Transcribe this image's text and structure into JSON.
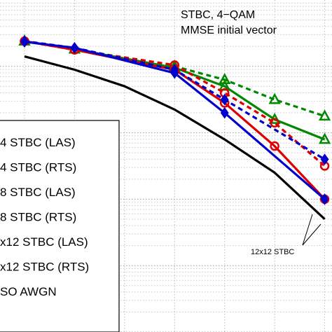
{
  "chart_data": {
    "type": "line",
    "title": "",
    "xlabel": "",
    "ylabel": "",
    "xlim": [
      0,
      14
    ],
    "ylim": [
      -5,
      0
    ],
    "yscale": "log",
    "grid": true,
    "annotations": {
      "line1": "STBC, 4−QAM",
      "line2": "MMSE initial vector",
      "group_label": "12x12 STBC"
    },
    "legend": {
      "placement": "left",
      "entries": [
        "4 STBC (LAS)",
        "4 STBC (RTS)",
        "8 STBC (LAS)",
        "8 STBC (RTS)",
        "x12 STBC (LAS)",
        "x12 STBC (RTS)",
        "SO AWGN"
      ]
    },
    "series": [
      {
        "name": "x12 STBC (LAS)",
        "color": "#0000cc",
        "dash": "solid",
        "marker": "diamond",
        "x": [
          0,
          2,
          6,
          8,
          12
        ],
        "y": [
          -0.63,
          -0.72,
          -1.1,
          -1.7,
          -3.0
        ]
      },
      {
        "name": "x12 STBC (RTS)",
        "color": "#0000cc",
        "dash": "dashed",
        "marker": "diamond",
        "x": [
          0,
          2,
          6,
          8,
          12
        ],
        "y": [
          -0.62,
          -0.72,
          -1.05,
          -1.5,
          -2.4
        ]
      },
      {
        "name": "8 STBC (LAS)",
        "color": "#dd0000",
        "dash": "solid",
        "marker": "circle",
        "x": [
          0,
          2,
          6,
          8,
          10,
          12
        ],
        "y": [
          -0.62,
          -0.75,
          -1.05,
          -1.55,
          -2.2,
          -3.0
        ]
      },
      {
        "name": "8 STBC (RTS)",
        "color": "#dd0000",
        "dash": "dashed",
        "marker": "circle",
        "x": [
          0,
          2,
          6,
          8,
          10,
          12
        ],
        "y": [
          -0.62,
          -0.75,
          -0.98,
          -1.4,
          -1.85,
          -2.5
        ]
      },
      {
        "name": "4 STBC (LAS)",
        "color": "#008800",
        "dash": "solid",
        "marker": "triangle",
        "x": [
          0,
          2,
          6,
          8,
          10,
          12
        ],
        "y": [
          -0.62,
          -0.74,
          -1.02,
          -1.3,
          -1.8,
          -2.1
        ]
      },
      {
        "name": "4 STBC (RTS)",
        "color": "#008800",
        "dash": "dashed",
        "marker": "triangle",
        "x": [
          0,
          2,
          6,
          8,
          10,
          12
        ],
        "y": [
          -0.62,
          -0.74,
          -1.0,
          -1.2,
          -1.5,
          -1.75
        ]
      },
      {
        "name": "SO AWGN",
        "color": "#000000",
        "dash": "solid",
        "marker": "none",
        "x": [
          0,
          2,
          4,
          6,
          8,
          10,
          12
        ],
        "y": [
          -0.85,
          -1.05,
          -1.3,
          -1.65,
          -2.1,
          -2.6,
          -3.3
        ]
      }
    ]
  }
}
